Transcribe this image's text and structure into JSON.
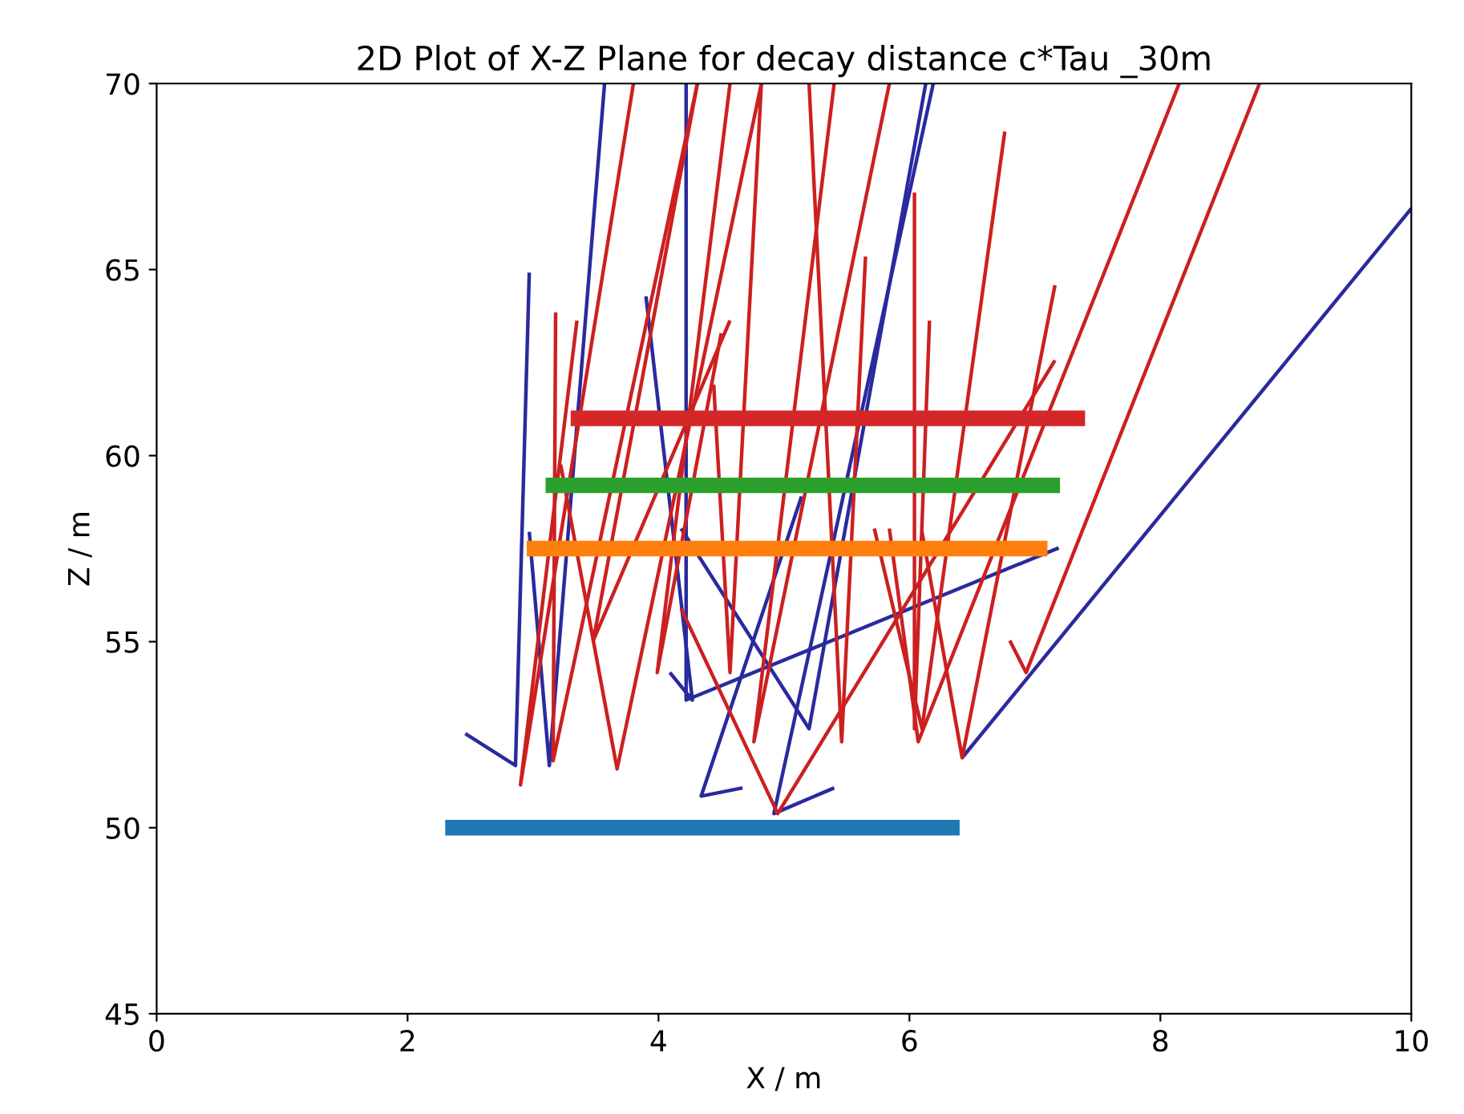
{
  "chart_data": {
    "type": "line",
    "title": "2D Plot of X-Z Plane for decay distance c*Tau _30m",
    "xlabel": "X / m",
    "ylabel": "Z / m",
    "xlim": [
      0,
      10
    ],
    "ylim": [
      45,
      70
    ],
    "xticks": [
      0,
      2,
      4,
      6,
      8,
      10
    ],
    "yticks": [
      45,
      50,
      55,
      60,
      65,
      70
    ],
    "grid": false,
    "legend": false,
    "series": [
      {
        "color": "#2a2a9e",
        "x": [
          2.46,
          2.86,
          2.97
        ],
        "values": [
          52.53,
          51.67,
          64.92
        ]
      },
      {
        "color": "#2a2a9e",
        "x": [
          2.97,
          3.13,
          3.57
        ],
        "values": [
          57.95,
          51.67,
          70
        ]
      },
      {
        "color": "#2a2a9e",
        "x": [
          3.9,
          4.27,
          4.09
        ],
        "values": [
          64.28,
          53.43,
          54.17
        ]
      },
      {
        "color": "#2a2a9e",
        "x": [
          4.22,
          4.22,
          7.19
        ],
        "values": [
          70,
          53.43,
          57.52
        ]
      },
      {
        "color": "#2a2a9e",
        "x": [
          4.67,
          4.34,
          5.14
        ],
        "values": [
          51.07,
          50.85,
          58.9
        ]
      },
      {
        "color": "#2a2a9e",
        "x": [
          5.4,
          4.92,
          6.19
        ],
        "values": [
          51.07,
          50.38,
          70
        ]
      },
      {
        "color": "#2a2a9e",
        "x": [
          6.13,
          5.2,
          4.18
        ],
        "values": [
          70,
          52.66,
          58.04
        ]
      },
      {
        "color": "#2a2a9e",
        "x": [
          10,
          6.42
        ],
        "values": [
          66.64,
          51.88
        ]
      },
      {
        "color": "#cc2020",
        "x": [
          3.8,
          2.9,
          3.35
        ],
        "values": [
          70,
          51.15,
          63.63
        ]
      },
      {
        "color": "#cc2020",
        "x": [
          3.18,
          3.16,
          4.31
        ],
        "values": [
          63.85,
          51.8,
          70
        ]
      },
      {
        "color": "#cc2020",
        "x": [
          3.22,
          3.67,
          4.82
        ],
        "values": [
          59.76,
          51.58,
          70
        ]
      },
      {
        "color": "#cc2020",
        "x": [
          4.57,
          3.99,
          4.5
        ],
        "values": [
          70,
          54.17,
          63.29
        ]
      },
      {
        "color": "#cc2020",
        "x": [
          4.31,
          3.48,
          4.57
        ],
        "values": [
          70,
          55.03,
          63.63
        ]
      },
      {
        "color": "#cc2020",
        "x": [
          4.44,
          4.57,
          4.82
        ],
        "values": [
          61.91,
          54.17,
          70
        ]
      },
      {
        "color": "#cc2020",
        "x": [
          5.4,
          4.76,
          5.84
        ],
        "values": [
          70,
          52.31,
          70
        ]
      },
      {
        "color": "#cc2020",
        "x": [
          5.2,
          5.46,
          5.65
        ],
        "values": [
          70,
          52.31,
          65.35
        ]
      },
      {
        "color": "#cc2020",
        "x": [
          6.04,
          6.04,
          6.16
        ],
        "values": [
          67.07,
          52.66,
          63.63
        ]
      },
      {
        "color": "#cc2020",
        "x": [
          6.76,
          6.1,
          5.72
        ],
        "values": [
          68.71,
          52.66,
          58.04
        ]
      },
      {
        "color": "#cc2020",
        "x": [
          8.15,
          6.07,
          5.84
        ],
        "values": [
          70,
          52.31,
          58.04
        ]
      },
      {
        "color": "#cc2020",
        "x": [
          8.79,
          6.93,
          6.8
        ],
        "values": [
          70,
          54.17,
          55.03
        ]
      },
      {
        "color": "#cc2020",
        "x": [
          7.16,
          6.42,
          6.1
        ],
        "values": [
          64.58,
          51.88,
          57.95
        ]
      },
      {
        "color": "#cc2020",
        "x": [
          7.16,
          4.95,
          4.18
        ],
        "values": [
          62.56,
          50.38,
          55.89
        ]
      },
      {
        "color": "#1f77b4",
        "x": [
          2.3,
          6.4
        ],
        "values": [
          50,
          50
        ]
      },
      {
        "color": "#ff7f0e",
        "x": [
          2.95,
          7.1
        ],
        "values": [
          57.5,
          57.5
        ]
      },
      {
        "color": "#2ca02c",
        "x": [
          3.1,
          7.2
        ],
        "values": [
          59.2,
          59.2
        ]
      },
      {
        "color": "#d62728",
        "x": [
          3.3,
          7.4
        ],
        "values": [
          61,
          61
        ]
      }
    ]
  }
}
